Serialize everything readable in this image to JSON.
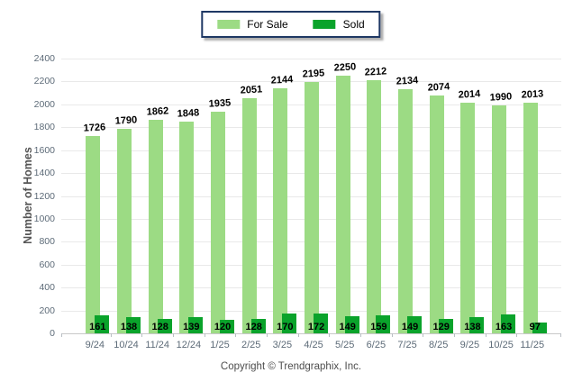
{
  "chart_data": {
    "type": "bar",
    "categories": [
      "9/24",
      "10/24",
      "11/24",
      "12/24",
      "1/25",
      "2/25",
      "3/25",
      "4/25",
      "5/25",
      "6/25",
      "7/25",
      "8/25",
      "9/25",
      "10/25",
      "11/25"
    ],
    "series": [
      {
        "name": "For Sale",
        "color": "#9CDB84",
        "values": [
          1726,
          1790,
          1862,
          1848,
          1935,
          2051,
          2144,
          2195,
          2250,
          2212,
          2134,
          2074,
          2014,
          1990,
          2013
        ]
      },
      {
        "name": "Sold",
        "color": "#0AA32B",
        "values": [
          161,
          138,
          128,
          139,
          120,
          128,
          170,
          172,
          149,
          159,
          149,
          129,
          138,
          163,
          97
        ]
      }
    ],
    "ylabel": "Number of Homes",
    "ylim": [
      0,
      2400
    ],
    "ytick_step": 200,
    "grid": "horizontal",
    "legend_position": "top-center",
    "value_labels": true
  },
  "colors": {
    "grid": "#E9E9E9",
    "zero_axis": "#C9C9C9",
    "tick_text": "#5D6B78",
    "legend_border": "#1F3864"
  },
  "footer": {
    "copyright": "Copyright © Trendgraphix, Inc."
  }
}
